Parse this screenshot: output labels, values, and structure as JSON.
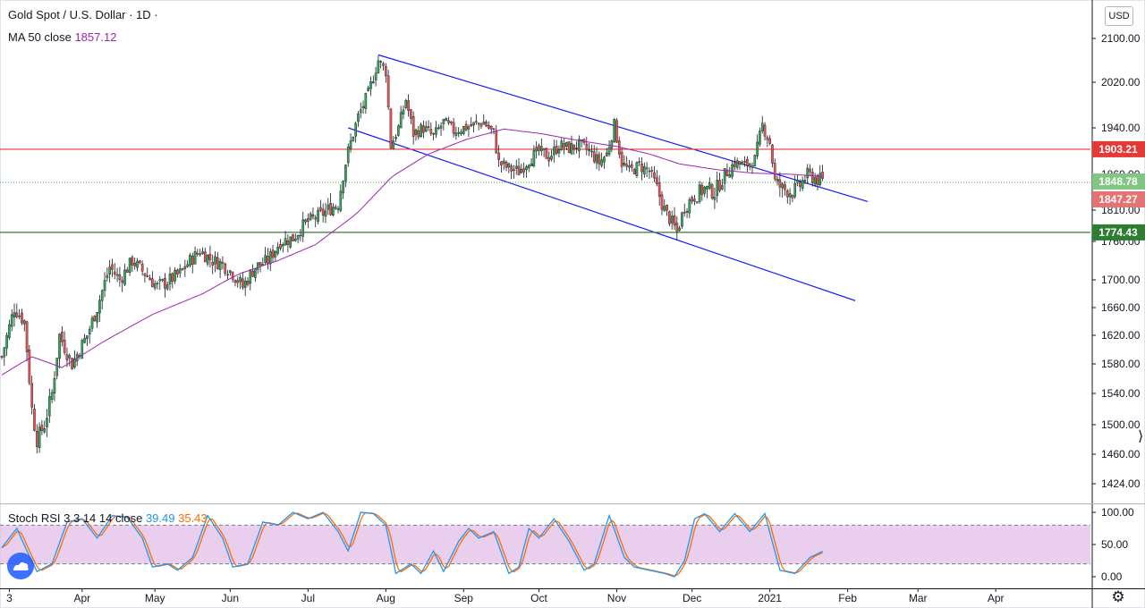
{
  "header": {
    "symbol": "Gold Spot / U.S. Dollar · 1D ·",
    "ma_label": "MA 50 close",
    "ma_value": "1857.12",
    "currency_button": "USD"
  },
  "colors": {
    "up": "#26a69a",
    "up_body": "#34a853",
    "down": "#ef5350",
    "ma": "#9c27b0",
    "channel": "#1a1aff",
    "resistance": "#e53935",
    "support": "#2e7d32",
    "stoch_k": "#2196f3",
    "stoch_d": "#ff6d00",
    "stoch_band": "#e1bee7"
  },
  "chart_data": [
    {
      "type": "candlestick",
      "title": "Gold Spot / U.S. Dollar · 1D ·",
      "ylim": [
        1400,
        2140
      ],
      "y_ticks": [
        1424,
        1460,
        1500,
        1540,
        1580,
        1620,
        1660,
        1700,
        1760,
        1810,
        1860,
        1940,
        2020,
        2100
      ],
      "y_tick_labels": [
        "1424.00",
        "1460.00",
        "1500.00",
        "1540.00",
        "1580.00",
        "1620.00",
        "1660.00",
        "1700.00",
        "1760.00",
        "1810.00",
        "1860.00",
        "1940.00",
        "2020.00",
        "2100.00"
      ],
      "x_ticks": [
        {
          "day": 3,
          "label": "3"
        },
        {
          "day": 32,
          "label": "Apr"
        },
        {
          "day": 61,
          "label": "May"
        },
        {
          "day": 91,
          "label": "Jun"
        },
        {
          "day": 122,
          "label": "Jul"
        },
        {
          "day": 153,
          "label": "Aug"
        },
        {
          "day": 184,
          "label": "Sep"
        },
        {
          "day": 214,
          "label": "Oct"
        },
        {
          "day": 245,
          "label": "Nov"
        },
        {
          "day": 275,
          "label": "Dec"
        },
        {
          "day": 306,
          "label": "2021"
        },
        {
          "day": 337,
          "label": "Feb"
        },
        {
          "day": 365,
          "label": "Mar"
        },
        {
          "day": 396,
          "label": "Apr"
        }
      ],
      "xlim_days": [
        0,
        433
      ],
      "close_path": [
        {
          "day": 0,
          "close": 1590
        },
        {
          "day": 5,
          "close": 1660
        },
        {
          "day": 9,
          "close": 1640
        },
        {
          "day": 12,
          "close": 1520
        },
        {
          "day": 14,
          "close": 1480
        },
        {
          "day": 17,
          "close": 1500
        },
        {
          "day": 20,
          "close": 1540
        },
        {
          "day": 23,
          "close": 1620
        },
        {
          "day": 28,
          "close": 1580
        },
        {
          "day": 34,
          "close": 1620
        },
        {
          "day": 38,
          "close": 1660
        },
        {
          "day": 43,
          "close": 1720
        },
        {
          "day": 47,
          "close": 1700
        },
        {
          "day": 52,
          "close": 1730
        },
        {
          "day": 57,
          "close": 1710
        },
        {
          "day": 62,
          "close": 1690
        },
        {
          "day": 67,
          "close": 1700
        },
        {
          "day": 71,
          "close": 1710
        },
        {
          "day": 75,
          "close": 1730
        },
        {
          "day": 79,
          "close": 1745
        },
        {
          "day": 84,
          "close": 1730
        },
        {
          "day": 88,
          "close": 1725
        },
        {
          "day": 92,
          "close": 1710
        },
        {
          "day": 96,
          "close": 1690
        },
        {
          "day": 101,
          "close": 1720
        },
        {
          "day": 106,
          "close": 1730
        },
        {
          "day": 111,
          "close": 1760
        },
        {
          "day": 116,
          "close": 1765
        },
        {
          "day": 121,
          "close": 1790
        },
        {
          "day": 126,
          "close": 1800
        },
        {
          "day": 130,
          "close": 1810
        },
        {
          "day": 134,
          "close": 1820
        },
        {
          "day": 138,
          "close": 1900
        },
        {
          "day": 142,
          "close": 1960
        },
        {
          "day": 146,
          "close": 2000
        },
        {
          "day": 150,
          "close": 2060
        },
        {
          "day": 153,
          "close": 2040
        },
        {
          "day": 155,
          "close": 1910
        },
        {
          "day": 158,
          "close": 1940
        },
        {
          "day": 161,
          "close": 1990
        },
        {
          "day": 164,
          "close": 1930
        },
        {
          "day": 168,
          "close": 1940
        },
        {
          "day": 172,
          "close": 1925
        },
        {
          "day": 176,
          "close": 1950
        },
        {
          "day": 180,
          "close": 1935
        },
        {
          "day": 184,
          "close": 1940
        },
        {
          "day": 188,
          "close": 1945
        },
        {
          "day": 192,
          "close": 1950
        },
        {
          "day": 196,
          "close": 1930
        },
        {
          "day": 198,
          "close": 1880
        },
        {
          "day": 202,
          "close": 1870
        },
        {
          "day": 206,
          "close": 1865
        },
        {
          "day": 210,
          "close": 1885
        },
        {
          "day": 214,
          "close": 1900
        },
        {
          "day": 218,
          "close": 1890
        },
        {
          "day": 222,
          "close": 1910
        },
        {
          "day": 226,
          "close": 1905
        },
        {
          "day": 230,
          "close": 1910
        },
        {
          "day": 234,
          "close": 1900
        },
        {
          "day": 238,
          "close": 1880
        },
        {
          "day": 241,
          "close": 1895
        },
        {
          "day": 244,
          "close": 1945
        },
        {
          "day": 247,
          "close": 1880
        },
        {
          "day": 250,
          "close": 1865
        },
        {
          "day": 254,
          "close": 1875
        },
        {
          "day": 258,
          "close": 1865
        },
        {
          "day": 261,
          "close": 1840
        },
        {
          "day": 264,
          "close": 1810
        },
        {
          "day": 267,
          "close": 1790
        },
        {
          "day": 269,
          "close": 1775
        },
        {
          "day": 272,
          "close": 1815
        },
        {
          "day": 276,
          "close": 1830
        },
        {
          "day": 280,
          "close": 1840
        },
        {
          "day": 284,
          "close": 1835
        },
        {
          "day": 288,
          "close": 1860
        },
        {
          "day": 292,
          "close": 1880
        },
        {
          "day": 296,
          "close": 1875
        },
        {
          "day": 300,
          "close": 1885
        },
        {
          "day": 303,
          "close": 1945
        },
        {
          "day": 306,
          "close": 1915
        },
        {
          "day": 308,
          "close": 1850
        },
        {
          "day": 311,
          "close": 1840
        },
        {
          "day": 315,
          "close": 1835
        },
        {
          "day": 318,
          "close": 1845
        },
        {
          "day": 321,
          "close": 1860
        },
        {
          "day": 324,
          "close": 1855
        },
        {
          "day": 327,
          "close": 1850
        }
      ],
      "ma50_path": [
        {
          "day": 0,
          "close": 1565
        },
        {
          "day": 12,
          "close": 1590
        },
        {
          "day": 24,
          "close": 1575
        },
        {
          "day": 40,
          "close": 1610
        },
        {
          "day": 60,
          "close": 1650
        },
        {
          "day": 80,
          "close": 1680
        },
        {
          "day": 95,
          "close": 1710
        },
        {
          "day": 110,
          "close": 1730
        },
        {
          "day": 125,
          "close": 1755
        },
        {
          "day": 140,
          "close": 1800
        },
        {
          "day": 155,
          "close": 1855
        },
        {
          "day": 170,
          "close": 1895
        },
        {
          "day": 185,
          "close": 1920
        },
        {
          "day": 200,
          "close": 1938
        },
        {
          "day": 215,
          "close": 1930
        },
        {
          "day": 230,
          "close": 1918
        },
        {
          "day": 245,
          "close": 1908
        },
        {
          "day": 258,
          "close": 1895
        },
        {
          "day": 270,
          "close": 1878
        },
        {
          "day": 285,
          "close": 1868
        },
        {
          "day": 300,
          "close": 1862
        },
        {
          "day": 315,
          "close": 1860
        },
        {
          "day": 327,
          "close": 1857
        }
      ],
      "trendlines": [
        {
          "name": "channel-upper",
          "from": {
            "day": 150,
            "price": 2070
          },
          "to": {
            "day": 345,
            "price": 1822
          }
        },
        {
          "name": "channel-lower",
          "from": {
            "day": 138,
            "price": 1940
          },
          "to": {
            "day": 340,
            "price": 1670
          }
        }
      ],
      "horizontal_levels": [
        {
          "name": "resistance",
          "price": 1903.21,
          "label": "1903.21"
        },
        {
          "name": "support",
          "price": 1774.43,
          "label": "1774.43"
        }
      ],
      "price_tags": [
        {
          "price": 1848.78,
          "label": "1848.78"
        },
        {
          "price": 1847.27,
          "label": "1847.27"
        }
      ]
    },
    {
      "type": "line",
      "title": "Stoch RSI 3 3 14 14 close",
      "series": [
        {
          "name": "K",
          "last_value": "39.49"
        },
        {
          "name": "D",
          "last_value": "35.43"
        }
      ],
      "ylim": [
        0,
        100
      ],
      "band": [
        20,
        80
      ],
      "y_ticks": [
        0,
        50,
        100
      ],
      "y_tick_labels": [
        "0.00",
        "50.00",
        "100.00"
      ],
      "k_path": [
        {
          "day": 0,
          "value": 45
        },
        {
          "day": 6,
          "value": 75
        },
        {
          "day": 10,
          "value": 40
        },
        {
          "day": 14,
          "value": 8
        },
        {
          "day": 20,
          "value": 20
        },
        {
          "day": 26,
          "value": 85
        },
        {
          "day": 32,
          "value": 90
        },
        {
          "day": 38,
          "value": 60
        },
        {
          "day": 44,
          "value": 95
        },
        {
          "day": 50,
          "value": 92
        },
        {
          "day": 56,
          "value": 60
        },
        {
          "day": 60,
          "value": 15
        },
        {
          "day": 66,
          "value": 20
        },
        {
          "day": 70,
          "value": 10
        },
        {
          "day": 76,
          "value": 30
        },
        {
          "day": 82,
          "value": 95
        },
        {
          "day": 88,
          "value": 60
        },
        {
          "day": 92,
          "value": 15
        },
        {
          "day": 98,
          "value": 20
        },
        {
          "day": 104,
          "value": 85
        },
        {
          "day": 110,
          "value": 80
        },
        {
          "day": 116,
          "value": 100
        },
        {
          "day": 122,
          "value": 90
        },
        {
          "day": 128,
          "value": 100
        },
        {
          "day": 134,
          "value": 70
        },
        {
          "day": 138,
          "value": 40
        },
        {
          "day": 143,
          "value": 100
        },
        {
          "day": 148,
          "value": 98
        },
        {
          "day": 153,
          "value": 80
        },
        {
          "day": 157,
          "value": 5
        },
        {
          "day": 163,
          "value": 20
        },
        {
          "day": 167,
          "value": 5
        },
        {
          "day": 172,
          "value": 40
        },
        {
          "day": 176,
          "value": 8
        },
        {
          "day": 182,
          "value": 55
        },
        {
          "day": 186,
          "value": 75
        },
        {
          "day": 190,
          "value": 60
        },
        {
          "day": 196,
          "value": 70
        },
        {
          "day": 202,
          "value": 5
        },
        {
          "day": 206,
          "value": 15
        },
        {
          "day": 210,
          "value": 75
        },
        {
          "day": 214,
          "value": 60
        },
        {
          "day": 220,
          "value": 90
        },
        {
          "day": 226,
          "value": 55
        },
        {
          "day": 232,
          "value": 10
        },
        {
          "day": 236,
          "value": 20
        },
        {
          "day": 242,
          "value": 95
        },
        {
          "day": 248,
          "value": 30
        },
        {
          "day": 252,
          "value": 15
        },
        {
          "day": 258,
          "value": 10
        },
        {
          "day": 264,
          "value": 5
        },
        {
          "day": 268,
          "value": 0
        },
        {
          "day": 272,
          "value": 25
        },
        {
          "day": 276,
          "value": 90
        },
        {
          "day": 280,
          "value": 98
        },
        {
          "day": 286,
          "value": 70
        },
        {
          "day": 292,
          "value": 98
        },
        {
          "day": 298,
          "value": 70
        },
        {
          "day": 304,
          "value": 98
        },
        {
          "day": 310,
          "value": 10
        },
        {
          "day": 316,
          "value": 5
        },
        {
          "day": 322,
          "value": 30
        },
        {
          "day": 327,
          "value": 39.49
        }
      ]
    }
  ]
}
